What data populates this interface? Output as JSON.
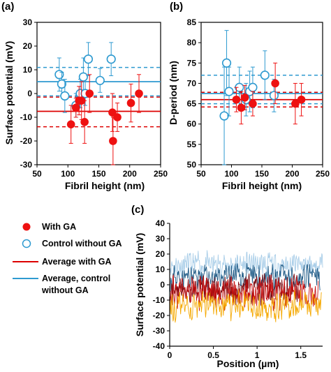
{
  "colors": {
    "ga": "#ee1111",
    "ga_line": "#dd0000",
    "control": "#2e9ad0",
    "control_fill": "#ffffff",
    "trace_light_blue": "#a8cde8",
    "trace_dark_blue": "#1f5a85",
    "trace_red": "#c81010",
    "trace_orange": "#f5a800",
    "trace_crimson": "#7a0a10"
  },
  "panels": {
    "a": {
      "label": "(a)"
    },
    "b": {
      "label": "(b)"
    },
    "c": {
      "label": "(c)"
    }
  },
  "legend": {
    "with_ga": "With GA",
    "control": "Control without GA",
    "avg_ga": "Average with GA",
    "avg_control_1": "Average, control",
    "avg_control_2": "without GA"
  },
  "chart_data": [
    {
      "panel": "(a)",
      "type": "scatter",
      "xlabel": "Fibril height (nm)",
      "ylabel": "Surface potential (mV)",
      "xlim": [
        50,
        250
      ],
      "ylim": [
        -30,
        30
      ],
      "xticks": [
        "50",
        "100",
        "150",
        "200",
        "250"
      ],
      "yticks": [
        "30",
        "20",
        "10",
        "0",
        "-10",
        "-20",
        "-30"
      ],
      "series": [
        {
          "name": "With GA",
          "marker": "filled-circle",
          "points": [
            {
              "x": 105,
              "y": -13,
              "err": 8
            },
            {
              "x": 113,
              "y": -6,
              "err": 4
            },
            {
              "x": 118,
              "y": -3,
              "err": 6
            },
            {
              "x": 122,
              "y": -3,
              "err": 8
            },
            {
              "x": 127,
              "y": -12,
              "err": 9
            },
            {
              "x": 135,
              "y": 0,
              "err": 8
            },
            {
              "x": 172,
              "y": -8,
              "err": 8
            },
            {
              "x": 173,
              "y": -20,
              "err": 10
            },
            {
              "x": 180,
              "y": -10,
              "err": 6
            },
            {
              "x": 202,
              "y": -4,
              "err": 8
            },
            {
              "x": 215,
              "y": 0,
              "err": 8
            }
          ],
          "average": -7.5,
          "average_band": [
            -1.5,
            -14
          ]
        },
        {
          "name": "Control without GA",
          "marker": "open-circle",
          "points": [
            {
              "x": 86,
              "y": 8,
              "err": 7
            },
            {
              "x": 90,
              "y": 4,
              "err": 5
            },
            {
              "x": 95,
              "y": -1,
              "err": 7
            },
            {
              "x": 113,
              "y": -5,
              "err": 5
            },
            {
              "x": 120,
              "y": 0,
              "err": 6
            },
            {
              "x": 125,
              "y": 7,
              "err": 8
            },
            {
              "x": 128,
              "y": 0,
              "err": 5
            },
            {
              "x": 133,
              "y": 14.5,
              "err": 7
            },
            {
              "x": 152,
              "y": 5.5,
              "err": 5
            },
            {
              "x": 170,
              "y": 14.5,
              "err": 7
            }
          ],
          "average": 5,
          "average_band": [
            11,
            -1
          ]
        }
      ]
    },
    {
      "panel": "(b)",
      "type": "scatter",
      "xlabel": "Fibril height (nm)",
      "ylabel": "D-period (nm)",
      "xlim": [
        50,
        250
      ],
      "ylim": [
        50,
        85
      ],
      "xticks": [
        "50",
        "100",
        "150",
        "200",
        "250"
      ],
      "yticks": [
        "85",
        "80",
        "75",
        "70",
        "65",
        "60",
        "55",
        "50"
      ],
      "series": [
        {
          "name": "With GA",
          "marker": "filled-circle",
          "points": [
            {
              "x": 108,
              "y": 66,
              "err": 3
            },
            {
              "x": 116,
              "y": 64,
              "err": 4
            },
            {
              "x": 122,
              "y": 66.5,
              "err": 3
            },
            {
              "x": 135,
              "y": 65,
              "err": 3
            },
            {
              "x": 172,
              "y": 70,
              "err": 5
            },
            {
              "x": 205,
              "y": 65,
              "err": 5
            },
            {
              "x": 215,
              "y": 66,
              "err": 4
            }
          ],
          "average": 66,
          "average_band": [
            67.8,
            64.2
          ]
        },
        {
          "name": "Control without GA",
          "marker": "open-circle",
          "points": [
            {
              "x": 88,
              "y": 62,
              "err": 12
            },
            {
              "x": 92,
              "y": 75,
              "err": 8
            },
            {
              "x": 96,
              "y": 68,
              "err": 6
            },
            {
              "x": 113,
              "y": 69,
              "err": 5
            },
            {
              "x": 124,
              "y": 66,
              "err": 4
            },
            {
              "x": 130,
              "y": 68,
              "err": 5
            },
            {
              "x": 135,
              "y": 69,
              "err": 5
            },
            {
              "x": 155,
              "y": 72,
              "err": 6
            },
            {
              "x": 170,
              "y": 67,
              "err": 4
            }
          ],
          "average": 67.5,
          "average_band": [
            72,
            65
          ]
        }
      ]
    },
    {
      "panel": "(c)",
      "type": "line",
      "xlabel": "Position (µm)",
      "ylabel": "Surface potential (mV)",
      "xlim": [
        0,
        1.75
      ],
      "ylim": [
        -40,
        40
      ],
      "xticks": [
        "0",
        "0.5",
        "1",
        "1.5"
      ],
      "yticks": [
        "40",
        "30",
        "20",
        "10",
        "0",
        "-10",
        "-20",
        "-30",
        "-40"
      ],
      "traces": [
        {
          "color_key": "trace_light_blue",
          "x_end": 1.75,
          "mean": 13,
          "amp": 6,
          "slope": 0,
          "seed": 11
        },
        {
          "color_key": "trace_dark_blue",
          "x_end": 1.72,
          "mean": 5,
          "amp": 6,
          "slope": 0,
          "seed": 23
        },
        {
          "color_key": "trace_crimson",
          "x_end": 1.5,
          "mean": -3,
          "amp": 7,
          "slope": 0,
          "seed": 31
        },
        {
          "color_key": "trace_red",
          "x_end": 1.7,
          "mean": -5,
          "amp": 8,
          "slope": 0,
          "seed": 47
        },
        {
          "color_key": "trace_orange",
          "x_end": 1.74,
          "mean": -14,
          "amp": 7,
          "slope": 0,
          "seed": 59
        }
      ]
    }
  ]
}
